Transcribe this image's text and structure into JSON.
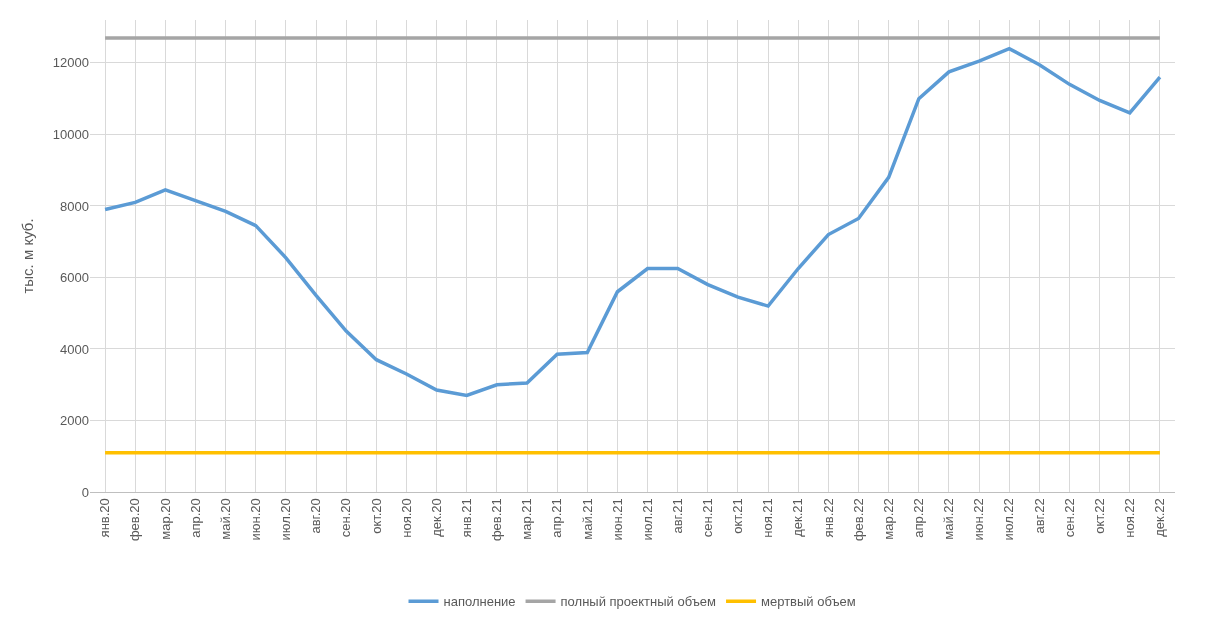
{
  "chart_data": {
    "type": "line",
    "ylabel": "тыс. м куб.",
    "categories": [
      "янв.20",
      "фев.20",
      "мар.20",
      "апр.20",
      "май.20",
      "июн.20",
      "июл.20",
      "авг.20",
      "сен.20",
      "окт.20",
      "ноя.20",
      "дек.20",
      "янв.21",
      "фев.21",
      "мар.21",
      "апр.21",
      "май.21",
      "июн.21",
      "июл.21",
      "авг.21",
      "сен.21",
      "окт.21",
      "ноя.21",
      "дек.21",
      "янв.22",
      "фев.22",
      "мар.22",
      "апр.22",
      "май.22",
      "июн.22",
      "июл.22",
      "авг.22",
      "сен.22",
      "окт.22",
      "ноя.22",
      "дек.22"
    ],
    "series": [
      {
        "name": "наполнение",
        "color": "#5b9bd5",
        "values": [
          7900,
          8100,
          8450,
          8150,
          7850,
          7450,
          6550,
          5500,
          4500,
          3700,
          3300,
          2850,
          2700,
          3000,
          3050,
          3850,
          3900,
          5600,
          6250,
          6250,
          5800,
          5450,
          5200,
          6250,
          7200,
          7650,
          8800,
          11000,
          11750,
          12050,
          12400,
          11950,
          11400,
          10950,
          10600,
          11600
        ]
      },
      {
        "name": "полный проектный объем",
        "color": "#a5a5a5",
        "values": [
          12700,
          12700,
          12700,
          12700,
          12700,
          12700,
          12700,
          12700,
          12700,
          12700,
          12700,
          12700,
          12700,
          12700,
          12700,
          12700,
          12700,
          12700,
          12700,
          12700,
          12700,
          12700,
          12700,
          12700,
          12700,
          12700,
          12700,
          12700,
          12700,
          12700,
          12700,
          12700,
          12700,
          12700,
          12700,
          12700
        ]
      },
      {
        "name": "мертвый объем",
        "color": "#ffc000",
        "values": [
          1100,
          1100,
          1100,
          1100,
          1100,
          1100,
          1100,
          1100,
          1100,
          1100,
          1100,
          1100,
          1100,
          1100,
          1100,
          1100,
          1100,
          1100,
          1100,
          1100,
          1100,
          1100,
          1100,
          1100,
          1100,
          1100,
          1100,
          1100,
          1100,
          1100,
          1100,
          1100,
          1100,
          1100,
          1100,
          1100
        ]
      }
    ],
    "ylim": [
      0,
      13200
    ],
    "yticks": [
      0,
      2000,
      4000,
      6000,
      8000,
      10000,
      12000
    ],
    "grid": true,
    "legend": "bottom",
    "marker": "none",
    "line_style": "solid"
  }
}
